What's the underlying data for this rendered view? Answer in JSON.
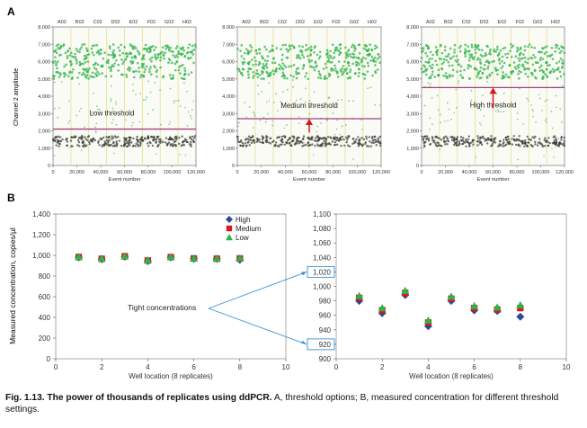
{
  "panels": {
    "a_label": "A",
    "b_label": "B"
  },
  "chart_data": [
    {
      "type": "scatter",
      "panel": "A",
      "well_labels": [
        "A02",
        "B02",
        "C02",
        "D02",
        "E02",
        "F02",
        "G02",
        "H02"
      ],
      "ylabel": "Channel 2 amplitude",
      "xlabel": "Event number",
      "yticks": [
        "0",
        "1,000",
        "2,000",
        "3,000",
        "4,000",
        "5,000",
        "6,000",
        "7,000",
        "8,000"
      ],
      "xticks": [
        "0",
        "20,000",
        "40,000",
        "60,000",
        "80,000",
        "100,000",
        "120,000"
      ],
      "ylim": [
        0,
        8000
      ],
      "xlim": [
        0,
        120000
      ],
      "positive_band": [
        5000,
        7000
      ],
      "negative_band": [
        1100,
        1700
      ],
      "colors": {
        "positive": "#2db34a",
        "negative": "#333333",
        "threshold": "#a0407a",
        "arrow": "#d7191c"
      },
      "subplots": [
        {
          "label": "Low threshold",
          "threshold": 2100,
          "arrow": false
        },
        {
          "label": "Medium threshold",
          "threshold": 2700,
          "arrow": true
        },
        {
          "label": "High threshold",
          "threshold": 4500,
          "arrow": true
        }
      ]
    },
    {
      "type": "scatter",
      "panel": "B-left",
      "ylabel": "Measured concentration, copies/µl",
      "xlabel": "Well location (8 replicates)",
      "ylim": [
        0,
        1400
      ],
      "xlim": [
        0,
        10
      ],
      "yticks": [
        "0",
        "200",
        "400",
        "600",
        "800",
        "1,000",
        "1,200",
        "1,400"
      ],
      "xticks": [
        "0",
        "2",
        "4",
        "6",
        "8",
        "10"
      ],
      "legend": [
        "High",
        "Medium",
        "Low"
      ],
      "colors": {
        "High": "#2a4a9c",
        "Medium": "#d7191c",
        "Low": "#2db34a"
      },
      "series": [
        {
          "name": "High",
          "x": [
            1,
            2,
            3,
            4,
            5,
            6,
            7,
            8
          ],
          "values": [
            980,
            963,
            988,
            945,
            980,
            967,
            966,
            958
          ]
        },
        {
          "name": "Medium",
          "x": [
            1,
            2,
            3,
            4,
            5,
            6,
            7,
            8
          ],
          "values": [
            984,
            967,
            991,
            950,
            983,
            970,
            968,
            970
          ]
        },
        {
          "name": "Low",
          "x": [
            1,
            2,
            3,
            4,
            5,
            6,
            7,
            8
          ],
          "values": [
            987,
            970,
            994,
            953,
            986,
            973,
            971,
            974
          ]
        }
      ]
    },
    {
      "type": "scatter",
      "panel": "B-right",
      "xlabel": "Well location (8 replicates)",
      "ylim": [
        900,
        1100
      ],
      "xlim": [
        0,
        10
      ],
      "yticks": [
        "900",
        "920",
        "940",
        "960",
        "980",
        "1,000",
        "1,020",
        "1,040",
        "1,060",
        "1,080",
        "1,100"
      ],
      "xticks": [
        "0",
        "2",
        "4",
        "6",
        "8",
        "10"
      ],
      "highlighted_ticks": [
        "1,020",
        "920"
      ],
      "annotation": "Tight concentrations"
    }
  ],
  "caption": {
    "bold": "Fig. 1.13. The power of thousands of replicates using ddPCR.",
    "rest": " A, threshold options; B, measured concentration for different threshold settings."
  }
}
